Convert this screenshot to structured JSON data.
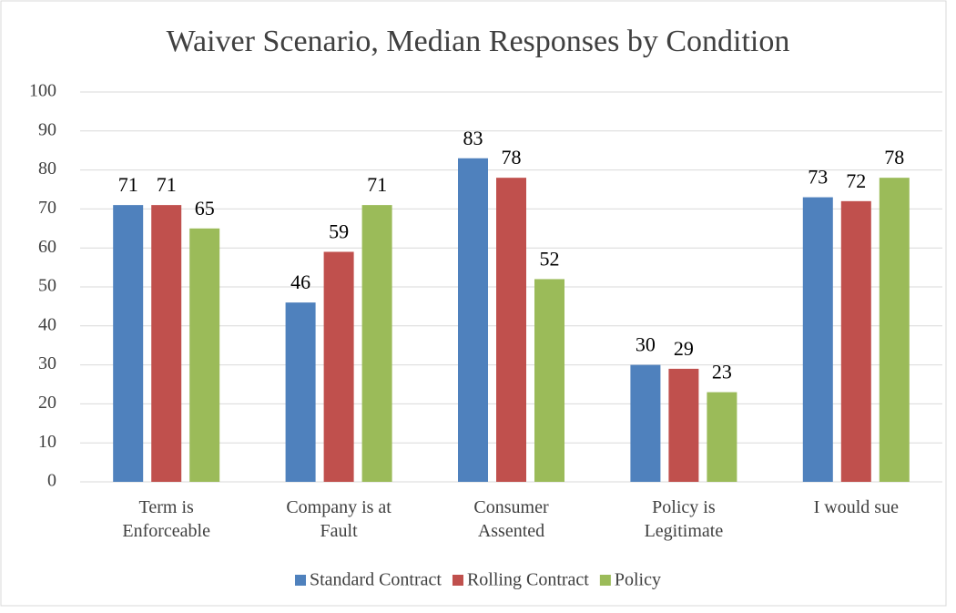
{
  "chart_data": {
    "type": "bar",
    "title": "Waiver Scenario, Median Responses by Condition",
    "categories": [
      "Term is Enforceable",
      "Company is at Fault",
      "Consumer Assented",
      "Policy is Legitimate",
      "I would sue"
    ],
    "series": [
      {
        "name": "Standard Contract",
        "color": "#4f81bd",
        "values": [
          71,
          46,
          83,
          30,
          73
        ]
      },
      {
        "name": "Rolling Contract",
        "color": "#c0504d",
        "values": [
          71,
          59,
          78,
          29,
          72
        ]
      },
      {
        "name": "Policy",
        "color": "#9bbb59",
        "values": [
          65,
          71,
          52,
          23,
          78
        ]
      }
    ],
    "ylim": [
      0,
      100
    ],
    "yticks": [
      0,
      10,
      20,
      30,
      40,
      50,
      60,
      70,
      80,
      90,
      100
    ],
    "grid": true,
    "legend": "bottom"
  }
}
